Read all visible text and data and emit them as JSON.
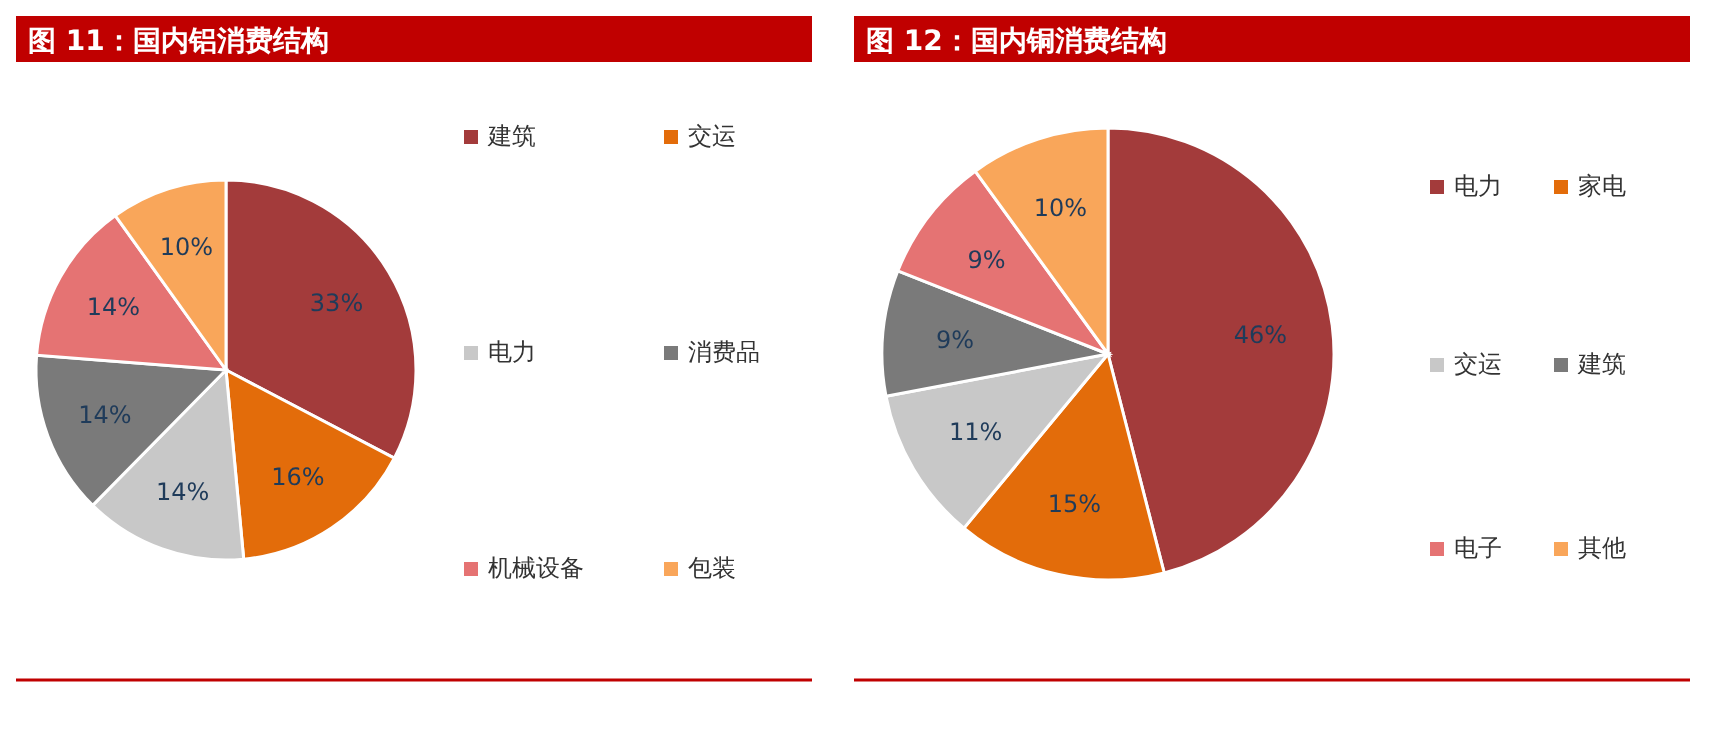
{
  "chart_data": [
    {
      "type": "pie",
      "title": "图 11：国内铝消费结构",
      "categories": [
        "建筑",
        "交运",
        "电力",
        "消费品",
        "机械设备",
        "包装"
      ],
      "values": [
        33,
        16,
        14,
        14,
        14,
        10
      ],
      "colors": [
        "#a33b3b",
        "#e36c0a",
        "#c8c8c8",
        "#7a7a7a",
        "#e57373",
        "#f9a65a"
      ],
      "value_labels": [
        "33%",
        "16%",
        "14%",
        "14%",
        "14%",
        "10%"
      ],
      "legend": "right"
    },
    {
      "type": "pie",
      "title": "图 12：国内铜消费结构",
      "categories": [
        "电力",
        "家电",
        "交运",
        "建筑",
        "电子",
        "其他"
      ],
      "values": [
        46,
        15,
        11,
        9,
        9,
        10
      ],
      "colors": [
        "#a33b3b",
        "#e36c0a",
        "#c8c8c8",
        "#7a7a7a",
        "#e57373",
        "#f9a65a"
      ],
      "value_labels": [
        "46%",
        "15%",
        "11%",
        "9%",
        "9%",
        "10%"
      ],
      "legend": "right"
    }
  ]
}
